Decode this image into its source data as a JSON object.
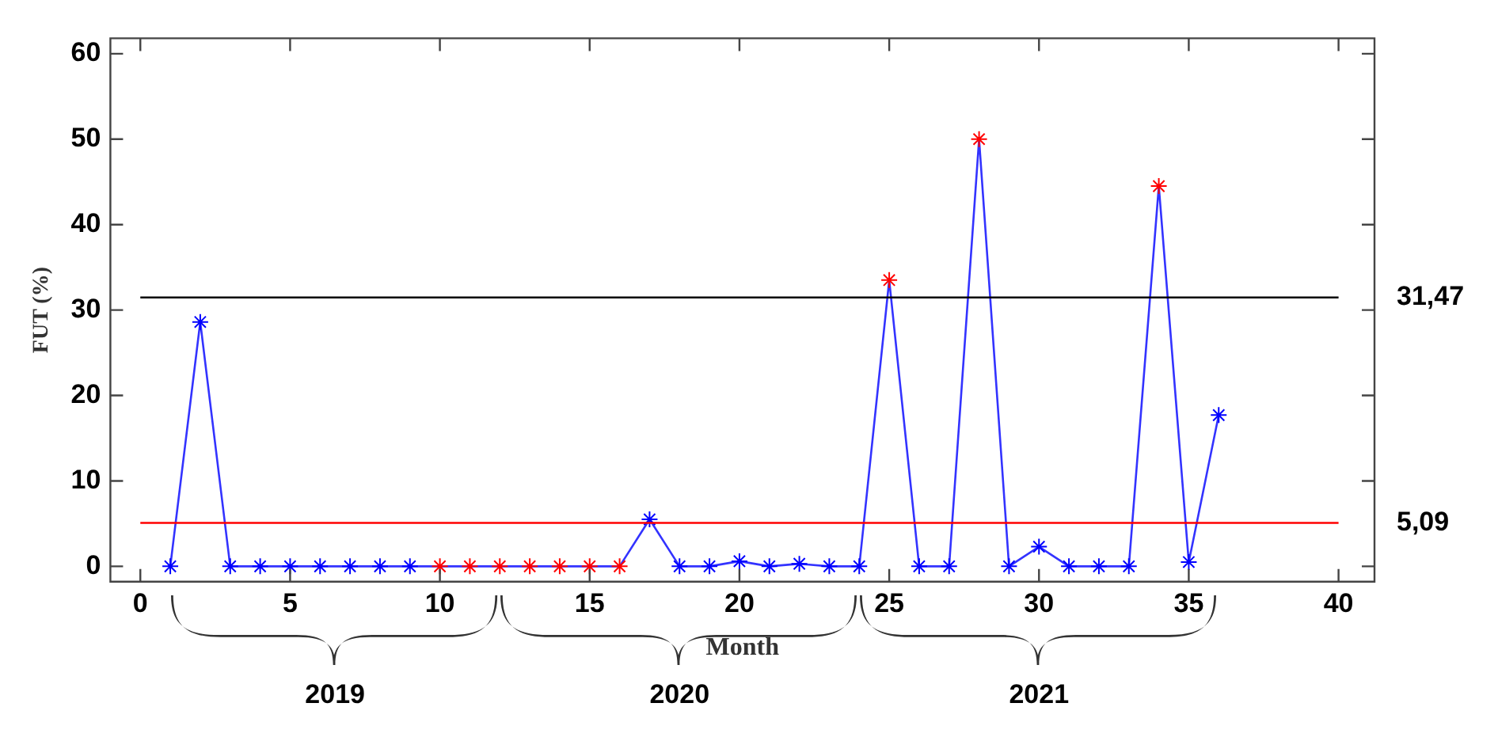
{
  "chart_data": {
    "type": "line",
    "xlabel": "Month",
    "ylabel": "FUT (%)",
    "x": [
      1,
      2,
      3,
      4,
      5,
      6,
      7,
      8,
      9,
      10,
      11,
      12,
      13,
      14,
      15,
      16,
      17,
      18,
      19,
      20,
      21,
      22,
      23,
      24,
      25,
      26,
      27,
      28,
      29,
      30,
      31,
      32,
      33,
      34,
      35,
      36
    ],
    "series": [
      {
        "color": "#3333ff",
        "values": [
          0,
          28.6,
          0,
          0,
          0,
          0,
          0,
          0,
          0,
          0,
          0,
          0,
          0,
          0,
          0,
          0,
          5.5,
          0,
          0,
          0.6,
          0,
          0.3,
          0,
          0,
          33.5,
          0,
          0,
          50,
          0,
          2.3,
          0,
          0,
          0,
          44.5,
          0.5,
          17.7
        ],
        "colors": [
          "#0000ff",
          "#0000ff",
          "#0000ff",
          "#0000ff",
          "#0000ff",
          "#0000ff",
          "#0000ff",
          "#0000ff",
          "#0000ff",
          "#ff0000",
          "#ff0000",
          "#ff0000",
          "#ff0000",
          "#ff0000",
          "#ff0000",
          "#ff0000",
          "#0000ff",
          "#0000ff",
          "#0000ff",
          "#0000ff",
          "#0000ff",
          "#0000ff",
          "#0000ff",
          "#0000ff",
          "#ff0000",
          "#0000ff",
          "#0000ff",
          "#ff0000",
          "#0000ff",
          "#0000ff",
          "#0000ff",
          "#0000ff",
          "#0000ff",
          "#ff0000",
          "#0000ff",
          "#0000ff"
        ]
      }
    ],
    "xlim": [
      -1,
      41.2
    ],
    "xticks": [
      0,
      5,
      10,
      15,
      20,
      25,
      30,
      35,
      40
    ],
    "ylim": [
      -1.8,
      61.8
    ],
    "yticks": [
      0,
      10,
      20,
      30,
      40,
      50,
      60
    ],
    "ref_lines": [
      {
        "axis": "y",
        "value": 31.47,
        "label": "31,47",
        "color": "#000000"
      },
      {
        "axis": "y",
        "value": 5.09,
        "label": "5,09",
        "color": "#ff0000"
      }
    ],
    "annotations": [
      "2019",
      "2020",
      "2021"
    ],
    "marker": "cross",
    "line_style": "solid",
    "grid": false,
    "legend": false
  }
}
